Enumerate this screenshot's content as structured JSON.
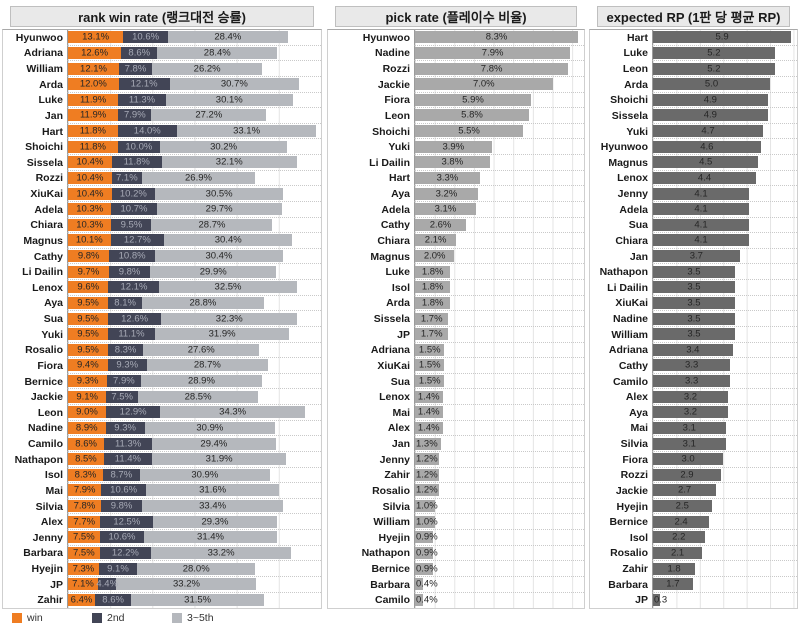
{
  "colors": {
    "win": "#EF7D22",
    "second": "#424556",
    "rest": "#B5B8BD",
    "pick_bar": "#A9A9A9",
    "rp_bar": "#6A6A6A",
    "header_bg": "#E9E9E9",
    "label_on_dark": "#A7AAB6",
    "label_dark": "#262626"
  },
  "legend": {
    "items": [
      {
        "label": "win",
        "color": "#EF7D22"
      },
      {
        "label": "2nd",
        "color": "#424556"
      },
      {
        "label": "3~5th",
        "color": "#B5B8BD"
      }
    ]
  },
  "chart_data": [
    {
      "type": "bar",
      "variant": "stacked-horizontal",
      "title": "rank win rate (랭크대전 승률)",
      "unit": "%",
      "xmax": 60,
      "grid_step": 10,
      "legend_position": "bottom-left",
      "categories": [
        "Hyunwoo",
        "Adriana",
        "William",
        "Arda",
        "Luke",
        "Jan",
        "Hart",
        "Shoichi",
        "Sissela",
        "Rozzi",
        "XiuKai",
        "Adela",
        "Chiara",
        "Magnus",
        "Cathy",
        "Li Dailin",
        "Lenox",
        "Aya",
        "Sua",
        "Yuki",
        "Rosalio",
        "Fiora",
        "Bernice",
        "Jackie",
        "Leon",
        "Nadine",
        "Camilo",
        "Nathapon",
        "Isol",
        "Mai",
        "Silvia",
        "Alex",
        "Jenny",
        "Barbara",
        "Hyejin",
        "JP",
        "Zahir"
      ],
      "series": [
        {
          "name": "win",
          "values": [
            13.1,
            12.6,
            12.1,
            12.0,
            11.9,
            11.9,
            11.8,
            11.8,
            10.4,
            10.4,
            10.4,
            10.3,
            10.3,
            10.1,
            9.8,
            9.7,
            9.6,
            9.5,
            9.5,
            9.5,
            9.5,
            9.4,
            9.3,
            9.1,
            9.0,
            8.9,
            8.6,
            8.5,
            8.3,
            7.9,
            7.8,
            7.7,
            7.5,
            7.5,
            7.3,
            7.1,
            6.4
          ]
        },
        {
          "name": "2nd",
          "values": [
            10.6,
            8.6,
            7.8,
            12.1,
            11.3,
            7.9,
            14.0,
            10.0,
            11.8,
            7.1,
            10.2,
            10.7,
            9.5,
            12.7,
            10.8,
            9.8,
            12.1,
            8.1,
            12.6,
            11.1,
            8.3,
            9.3,
            7.9,
            7.5,
            12.9,
            9.3,
            11.3,
            11.4,
            8.7,
            10.6,
            9.8,
            12.5,
            10.6,
            12.2,
            9.1,
            4.4,
            8.6
          ]
        },
        {
          "name": "3~5th",
          "values": [
            28.4,
            28.4,
            26.2,
            30.7,
            30.1,
            27.2,
            33.1,
            30.2,
            32.1,
            26.9,
            30.5,
            29.7,
            28.7,
            30.4,
            30.4,
            29.9,
            32.5,
            28.8,
            32.3,
            31.9,
            27.6,
            28.7,
            28.9,
            28.5,
            34.3,
            30.9,
            29.4,
            31.9,
            30.9,
            31.6,
            33.4,
            29.3,
            31.4,
            33.2,
            28.0,
            33.2,
            31.5
          ]
        }
      ]
    },
    {
      "type": "bar",
      "variant": "horizontal",
      "title": "pick rate (플레이수 비율)",
      "unit": "%",
      "xmax": 8.6,
      "grid_step": 1,
      "categories": [
        "Hyunwoo",
        "Nadine",
        "Rozzi",
        "Jackie",
        "Fiora",
        "Leon",
        "Shoichi",
        "Yuki",
        "Li Dailin",
        "Hart",
        "Aya",
        "Adela",
        "Cathy",
        "Chiara",
        "Magnus",
        "Luke",
        "Isol",
        "Arda",
        "Sissela",
        "JP",
        "Adriana",
        "XiuKai",
        "Sua",
        "Lenox",
        "Mai",
        "Alex",
        "Jan",
        "Jenny",
        "Zahir",
        "Rosalio",
        "Silvia",
        "William",
        "Hyejin",
        "Nathapon",
        "Bernice",
        "Barbara",
        "Camilo"
      ],
      "values": [
        8.3,
        7.9,
        7.8,
        7.0,
        5.9,
        5.8,
        5.5,
        3.9,
        3.8,
        3.3,
        3.2,
        3.1,
        2.6,
        2.1,
        2.0,
        1.8,
        1.8,
        1.8,
        1.7,
        1.7,
        1.5,
        1.5,
        1.5,
        1.4,
        1.4,
        1.4,
        1.3,
        1.2,
        1.2,
        1.2,
        1.0,
        1.0,
        0.9,
        0.9,
        0.9,
        0.4,
        0.4
      ]
    },
    {
      "type": "bar",
      "variant": "horizontal",
      "title": "expected RP (1판 당 평균 RP)",
      "unit": "",
      "xmax": 6.15,
      "grid_step": 1,
      "categories": [
        "Hart",
        "Luke",
        "Leon",
        "Arda",
        "Shoichi",
        "Sissela",
        "Yuki",
        "Hyunwoo",
        "Magnus",
        "Lenox",
        "Jenny",
        "Adela",
        "Sua",
        "Chiara",
        "Jan",
        "Nathapon",
        "Li Dailin",
        "XiuKai",
        "Nadine",
        "William",
        "Adriana",
        "Cathy",
        "Camilo",
        "Alex",
        "Aya",
        "Mai",
        "Silvia",
        "Fiora",
        "Rozzi",
        "Jackie",
        "Hyejin",
        "Bernice",
        "Isol",
        "Rosalio",
        "Zahir",
        "Barbara",
        "JP"
      ],
      "values": [
        5.9,
        5.2,
        5.2,
        5.0,
        4.9,
        4.9,
        4.7,
        4.6,
        4.5,
        4.4,
        4.1,
        4.1,
        4.1,
        4.1,
        3.7,
        3.5,
        3.5,
        3.5,
        3.5,
        3.5,
        3.4,
        3.3,
        3.3,
        3.2,
        3.2,
        3.1,
        3.1,
        3.0,
        2.9,
        2.7,
        2.5,
        2.4,
        2.2,
        2.1,
        1.8,
        1.7,
        0.3
      ]
    }
  ]
}
